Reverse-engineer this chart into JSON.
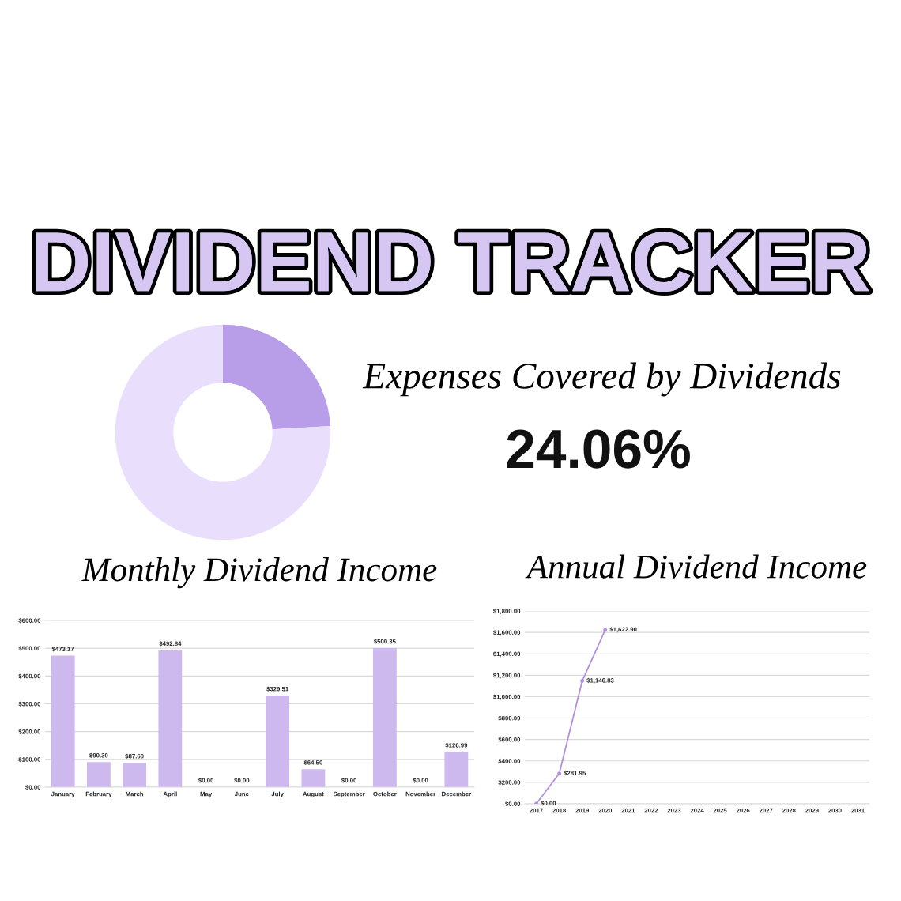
{
  "chart_data": [
    {
      "type": "other",
      "title": "DIVIDEND TRACKER"
    },
    {
      "type": "donut",
      "title": "Expenses Covered by Dividends",
      "categories": [
        null,
        null
      ],
      "values": [
        24.06,
        75.94
      ],
      "colors": [
        "#b89ee8",
        "#e9dffd"
      ],
      "annotations": [
        "24.06%"
      ]
    },
    {
      "type": "bar",
      "title": "Monthly Dividend Income",
      "categories": [
        "January",
        "February",
        "March",
        "April",
        "May",
        "June",
        "July",
        "August",
        "September",
        "October",
        "November",
        "December"
      ],
      "values": [
        473.17,
        90.3,
        87.6,
        492.84,
        0,
        0,
        329.51,
        64.5,
        0,
        500.35,
        0,
        126.99
      ],
      "color": "#cdb9ee",
      "value_labels": [
        "$473.17",
        "$90.30",
        "$87.60",
        "$492.84",
        "$0.00",
        "$0.00",
        "$329.51",
        "$64.50",
        "$0.00",
        "$500.35",
        "$0.00",
        "$126.99"
      ],
      "ylim": [
        0,
        600
      ],
      "yticks": [
        {
          "value": 0,
          "label": "$0.00"
        },
        {
          "value": 100,
          "label": "$100.00"
        },
        {
          "value": 200,
          "label": "$200.00"
        },
        {
          "value": 300,
          "label": "$300.00"
        },
        {
          "value": 400,
          "label": "$400.00"
        },
        {
          "value": 500,
          "label": "$500.00"
        },
        {
          "value": 600,
          "label": "$600.00"
        }
      ],
      "grid": "y"
    },
    {
      "type": "line",
      "title": "Annual Dividend Income",
      "categories": [
        "2017",
        "2018",
        "2019",
        "2020",
        "2021",
        "2022",
        "2023",
        "2024",
        "2025",
        "2026",
        "2027",
        "2028",
        "2029",
        "2030",
        "2031"
      ],
      "values": [
        0,
        281.95,
        1146.83,
        1622.9,
        null,
        null,
        null,
        null,
        null,
        null,
        null,
        null,
        null,
        null,
        null
      ],
      "color": "#b48fe0",
      "marker": "circle",
      "value_labels": [
        "$0.00",
        "$281.95",
        "$1,146.83",
        "$1,622.90",
        null,
        null,
        null,
        null,
        null,
        null,
        null,
        null,
        null,
        null,
        null
      ],
      "ylim": [
        0,
        1800
      ],
      "yticks": [
        {
          "value": 0,
          "label": "$0.00"
        },
        {
          "value": 200,
          "label": "$200.00"
        },
        {
          "value": 400,
          "label": "$400.00"
        },
        {
          "value": 600,
          "label": "$600.00"
        },
        {
          "value": 800,
          "label": "$800.00"
        },
        {
          "value": 1000,
          "label": "$1,000.00"
        },
        {
          "value": 1200,
          "label": "$1,200.00"
        },
        {
          "value": 1400,
          "label": "$1,400.00"
        },
        {
          "value": 1600,
          "label": "$1,600.00"
        },
        {
          "value": 1800,
          "label": "$1,800.00"
        }
      ],
      "grid": "y"
    }
  ]
}
